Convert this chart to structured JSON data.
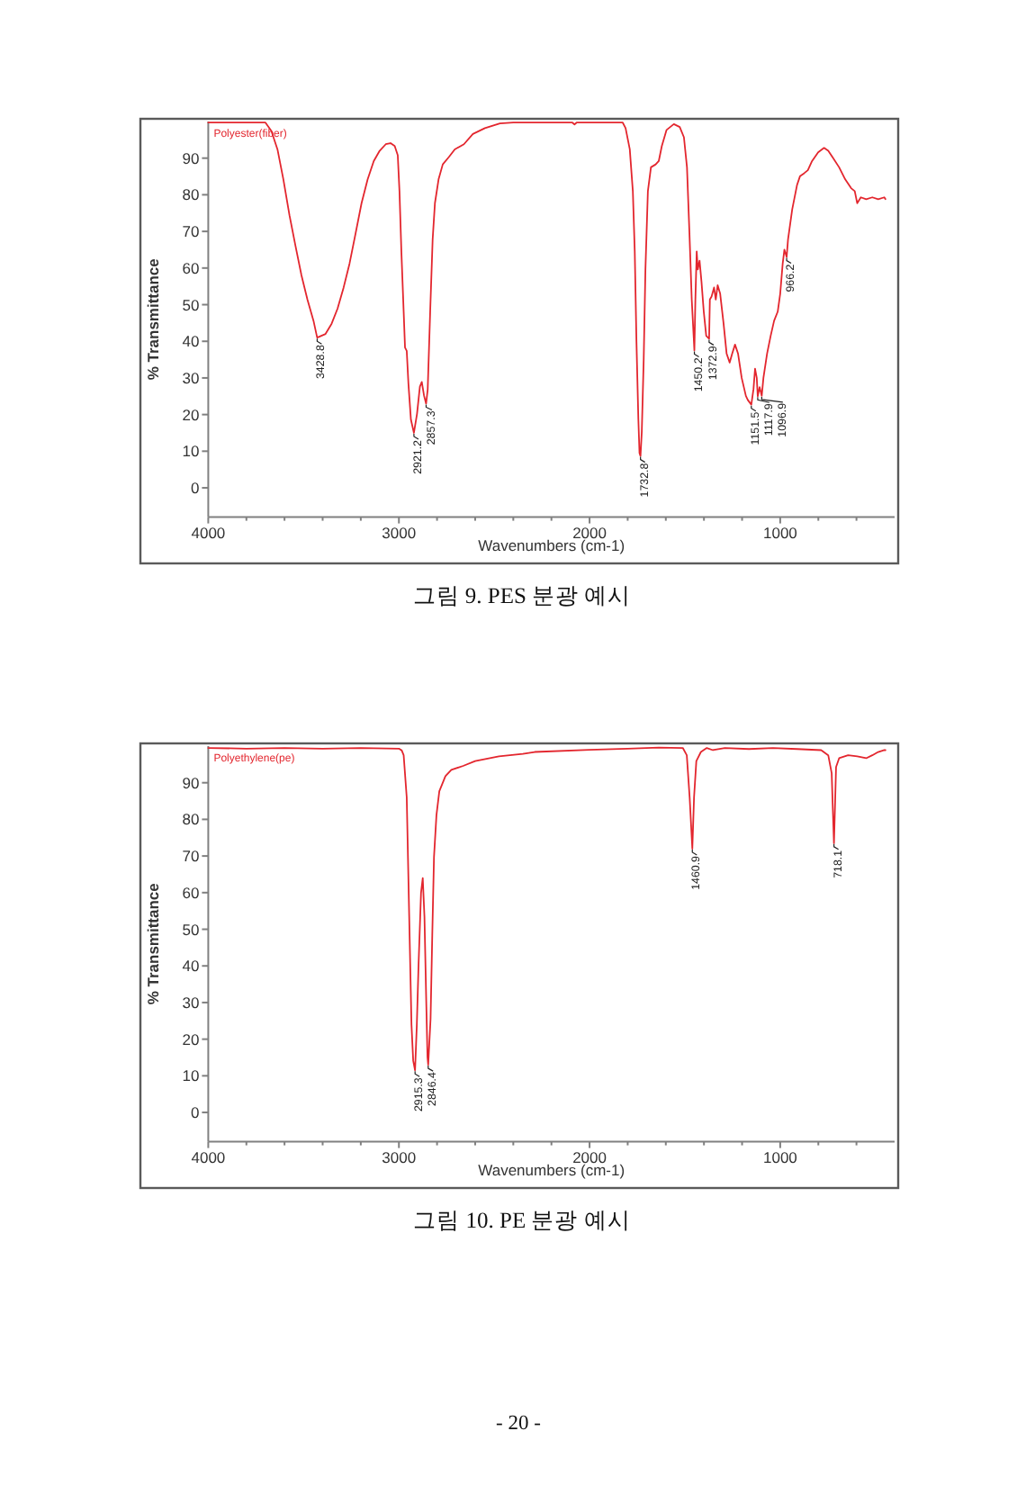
{
  "chart_data": [
    {
      "type": "line",
      "title": "그림 9. PES 분광 예시",
      "xlabel": "Wavenumbers (cm-1)",
      "ylabel": "% Transmittance",
      "xlim": [
        4000,
        400
      ],
      "ylim": [
        -8,
        100
      ],
      "xticks": [
        4000,
        {
          "value": 3800,
          "label": null
        },
        {
          "value": 3600,
          "label": null
        },
        {
          "value": 3400,
          "label": null
        },
        {
          "value": 3200,
          "label": null
        },
        3000,
        {
          "value": 2800,
          "label": null
        },
        {
          "value": 2600,
          "label": null
        },
        {
          "value": 2400,
          "label": null
        },
        {
          "value": 2200,
          "label": null
        },
        2000,
        {
          "value": 1800,
          "label": null
        },
        {
          "value": 1600,
          "label": null
        },
        {
          "value": 1400,
          "label": null
        },
        {
          "value": 1200,
          "label": null
        },
        1000,
        {
          "value": 800,
          "label": null
        },
        {
          "value": 600,
          "label": null
        }
      ],
      "yticks": [
        0,
        10,
        20,
        30,
        40,
        50,
        60,
        70,
        80,
        90
      ],
      "legend": "top left",
      "series": [
        {
          "name": "Polyester(fiber)",
          "color": "#e3262e",
          "x": [
            4000,
            3700,
            3669,
            3637,
            3606,
            3574,
            3543,
            3511,
            3480,
            3448,
            3428.8,
            3385,
            3353,
            3322,
            3290,
            3259,
            3227,
            3196,
            3164,
            3132,
            3101,
            3069,
            3044,
            3022,
            3006,
            2997,
            2987,
            2975,
            2968,
            2959,
            2950,
            2937,
            2921.2,
            2905,
            2890,
            2880,
            2868,
            2857.3,
            2849,
            2836,
            2823,
            2811,
            2792,
            2770,
            2738,
            2707,
            2659,
            2612,
            2549,
            2470,
            2400,
            2090,
            2079,
            2068,
            1826,
            1811,
            1789,
            1773,
            1763,
            1754,
            1744,
            1738,
            1732.8,
            1726,
            1716,
            1707,
            1694,
            1678,
            1653,
            1637,
            1621,
            1596,
            1558,
            1527,
            1505,
            1489,
            1476,
            1464,
            1450.2,
            1445,
            1438,
            1432,
            1423,
            1413,
            1401,
            1388,
            1372.9,
            1369,
            1360,
            1347,
            1338,
            1328,
            1315,
            1297,
            1281,
            1265,
            1252,
            1237,
            1221,
            1202,
            1180,
            1170,
            1151.5,
            1140,
            1132,
            1123,
            1117.9,
            1108,
            1096.9,
            1088,
            1069,
            1050,
            1032,
            1013,
            1000,
            987,
            978,
            966.2,
            959,
            937,
            912,
            896,
            874,
            855,
            833,
            801,
            770,
            748,
            722,
            691,
            659,
            628,
            609,
            596,
            577,
            549,
            517,
            486,
            454,
            448
          ],
          "values": [
            99.7,
            99.7,
            97.4,
            92.4,
            84.2,
            74.4,
            66.2,
            58,
            51.4,
            45.6,
            41,
            42,
            44.8,
            48.9,
            54.7,
            61.2,
            69.5,
            77.7,
            84.2,
            89.2,
            92,
            93.8,
            94.1,
            93.3,
            90.8,
            81,
            64.5,
            48.1,
            38.3,
            37.4,
            28.4,
            18.6,
            15,
            20.2,
            27.6,
            28.9,
            25.1,
            23,
            26.8,
            48.1,
            67.8,
            77.7,
            84.2,
            88.3,
            90.3,
            92.4,
            93.8,
            96.6,
            98.2,
            99.5,
            99.7,
            99.7,
            99.2,
            99.7,
            99.7,
            98.2,
            92.4,
            81,
            64.5,
            39.9,
            18.6,
            9.5,
            8.7,
            15.3,
            35,
            59.6,
            81,
            87.5,
            88.3,
            89.2,
            93.3,
            97.7,
            99.3,
            98.5,
            95.7,
            87.5,
            69.5,
            51.4,
            37.5,
            51.4,
            64.5,
            59.6,
            62,
            56.3,
            48.1,
            41.5,
            40.7,
            51.4,
            52.2,
            54.7,
            51.4,
            55.3,
            53,
            44.8,
            36.6,
            34.2,
            36.6,
            39.1,
            36.6,
            30,
            25.1,
            24,
            22.7,
            27,
            32.5,
            30,
            25,
            27.5,
            25.1,
            30,
            36.6,
            41.5,
            45.6,
            48.1,
            53,
            61.2,
            65,
            63,
            67.8,
            76,
            82.6,
            85.1,
            85.9,
            86.7,
            89.2,
            91.6,
            92.8,
            92,
            90,
            87.5,
            84.2,
            81.8,
            81,
            77.7,
            79.3,
            78.8,
            79.3,
            78.8,
            79.3,
            78.8
          ]
        }
      ],
      "annotations": [
        {
          "text": "3428.8",
          "x": 3428.8,
          "y": 41
        },
        {
          "text": "2921.2",
          "x": 2921.2,
          "y": 15
        },
        {
          "text": "2857.3",
          "x": 2857.3,
          "y": 23
        },
        {
          "text": "1732.8",
          "x": 1732.8,
          "y": 8.7
        },
        {
          "text": "1450.2",
          "x": 1450.2,
          "y": 37.5
        },
        {
          "text": "1372.9",
          "x": 1372.9,
          "y": 40.7
        },
        {
          "text": "1151.5",
          "x": 1151.5,
          "y": 22.7
        },
        {
          "text": "1117.9",
          "x": 1117.9,
          "y": 25
        },
        {
          "text": "1096.9",
          "x": 1096.9,
          "y": 25.1
        },
        {
          "text": "966.2",
          "x": 966.2,
          "y": 63
        }
      ]
    },
    {
      "type": "line",
      "title": "그림 10. PE 분광 예시",
      "xlabel": "Wavenumbers (cm-1)",
      "ylabel": "% Transmittance",
      "xlim": [
        4000,
        400
      ],
      "ylim": [
        -8,
        100
      ],
      "xticks": [
        4000,
        {
          "value": 3800,
          "label": null
        },
        {
          "value": 3600,
          "label": null
        },
        {
          "value": 3400,
          "label": null
        },
        {
          "value": 3200,
          "label": null
        },
        3000,
        {
          "value": 2800,
          "label": null
        },
        {
          "value": 2600,
          "label": null
        },
        {
          "value": 2400,
          "label": null
        },
        {
          "value": 2200,
          "label": null
        },
        2000,
        {
          "value": 1800,
          "label": null
        },
        {
          "value": 1600,
          "label": null
        },
        {
          "value": 1400,
          "label": null
        },
        {
          "value": 1200,
          "label": null
        },
        1000,
        {
          "value": 800,
          "label": null
        },
        {
          "value": 600,
          "label": null
        }
      ],
      "yticks": [
        0,
        10,
        20,
        30,
        40,
        50,
        60,
        70,
        80,
        90
      ],
      "legend": "top left",
      "series": [
        {
          "name": "Polyethylene(pe)",
          "color": "#e3262e",
          "x": [
            4000,
            3800,
            3600,
            3400,
            3200,
            3000,
            2985,
            2975,
            2959,
            2944,
            2934,
            2925,
            2915.3,
            2906,
            2897,
            2884,
            2875,
            2866,
            2856,
            2850,
            2846.4,
            2834,
            2825,
            2816,
            2803,
            2788,
            2756,
            2725,
            2663,
            2600,
            2475,
            2350,
            2288,
            2000,
            1800,
            1637,
            1511,
            1490,
            1475,
            1460.9,
            1452,
            1440,
            1416,
            1385,
            1353,
            1290,
            1164,
            1038,
            912,
            785,
            748,
            730,
            724,
            718.1,
            713,
            707,
            691,
            644,
            596,
            549,
            517,
            486,
            454,
            448
          ],
          "values": [
            99.5,
            99.3,
            99.5,
            99.3,
            99.5,
            99.3,
            98.8,
            97.5,
            86,
            48.4,
            23.9,
            14.1,
            11.5,
            23.9,
            40.3,
            59.9,
            64,
            53.4,
            28.8,
            15,
            13,
            25.5,
            48.4,
            69.7,
            81.2,
            87.7,
            91.8,
            93.5,
            94.6,
            95.9,
            97.2,
            97.9,
            98.4,
            99,
            99.3,
            99.6,
            99.5,
            97.5,
            86,
            72,
            86,
            95.9,
            98.4,
            99.5,
            98.9,
            99.5,
            99.2,
            99.5,
            99.2,
            98.9,
            97.5,
            92.6,
            82.8,
            73.5,
            82.8,
            94.3,
            96.7,
            97.5,
            97.2,
            96.7,
            97.5,
            98.4,
            98.9,
            98.9
          ]
        }
      ],
      "annotations": [
        {
          "text": "2915.3",
          "x": 2915.3,
          "y": 11.5
        },
        {
          "text": "2846.4",
          "x": 2846.4,
          "y": 13
        },
        {
          "text": "1460.9",
          "x": 1460.9,
          "y": 72
        },
        {
          "text": "718.1",
          "x": 718.1,
          "y": 73.5
        },
        "- 20 -"
      ]
    }
  ]
}
